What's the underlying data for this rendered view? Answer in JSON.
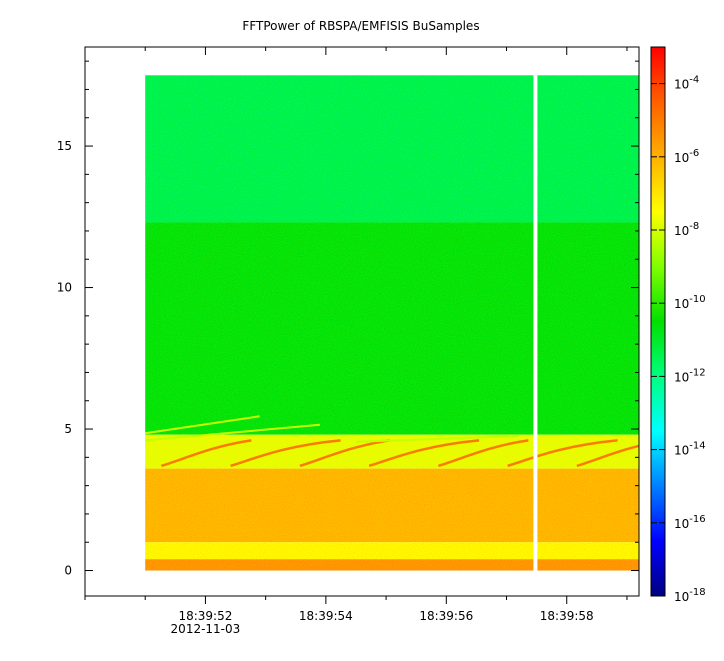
{
  "chart_data": {
    "type": "heatmap",
    "title": "FFTPower of RBSPA/EMFISIS  BuSamples",
    "xlabel": "",
    "ylabel": "",
    "x_ticks": [
      {
        "label": "18:39:52",
        "sublabel": "2012-11-03"
      },
      {
        "label": "18:39:54",
        "sublabel": ""
      },
      {
        "label": "18:39:56",
        "sublabel": ""
      },
      {
        "label": "18:39:58",
        "sublabel": ""
      }
    ],
    "xlim_seconds_after_18_39_50": [
      0,
      9.2
    ],
    "data_x_span_seconds_after_18_39_50": [
      1.0,
      9.2
    ],
    "data_gap_seconds_after_18_39_50": 7.48,
    "y_ticks": [
      0,
      5,
      10,
      15
    ],
    "ylim": [
      -0.9,
      18.5
    ],
    "data_y_top": 17.5,
    "colorbar": {
      "scale": "log",
      "range": [
        1e-18,
        0.001
      ],
      "ticks": [
        {
          "base": "10",
          "exp": "-4",
          "value": 0.0001
        },
        {
          "base": "10",
          "exp": "-6",
          "value": 1e-06
        },
        {
          "base": "10",
          "exp": "-8",
          "value": 1e-08
        },
        {
          "base": "10",
          "exp": "-10",
          "value": 1e-10
        },
        {
          "base": "10",
          "exp": "-12",
          "value": 1e-12
        },
        {
          "base": "10",
          "exp": "-14",
          "value": 1e-14
        },
        {
          "base": "10",
          "exp": "-16",
          "value": 1e-16
        },
        {
          "base": "10",
          "exp": "-18",
          "value": 1e-18
        }
      ],
      "colormap": [
        "#000080",
        "#0000ff",
        "#0080ff",
        "#00ffff",
        "#00ff80",
        "#00e000",
        "#80ff00",
        "#ffff00",
        "#ffb000",
        "#ff6000",
        "#ff0000"
      ]
    },
    "bands": [
      {
        "y_from": 12.3,
        "y_to": 17.5,
        "log_power": -11.5
      },
      {
        "y_from": 4.8,
        "y_to": 12.3,
        "log_power": -10.6
      },
      {
        "y_from": 3.6,
        "y_to": 4.8,
        "log_power": -7.8
      },
      {
        "y_from": 1.0,
        "y_to": 3.6,
        "log_power": -6.2
      },
      {
        "y_from": 0.4,
        "y_to": 1.0,
        "log_power": -7.4
      },
      {
        "y_from": 0.0,
        "y_to": 0.4,
        "log_power": -5.6
      }
    ]
  }
}
